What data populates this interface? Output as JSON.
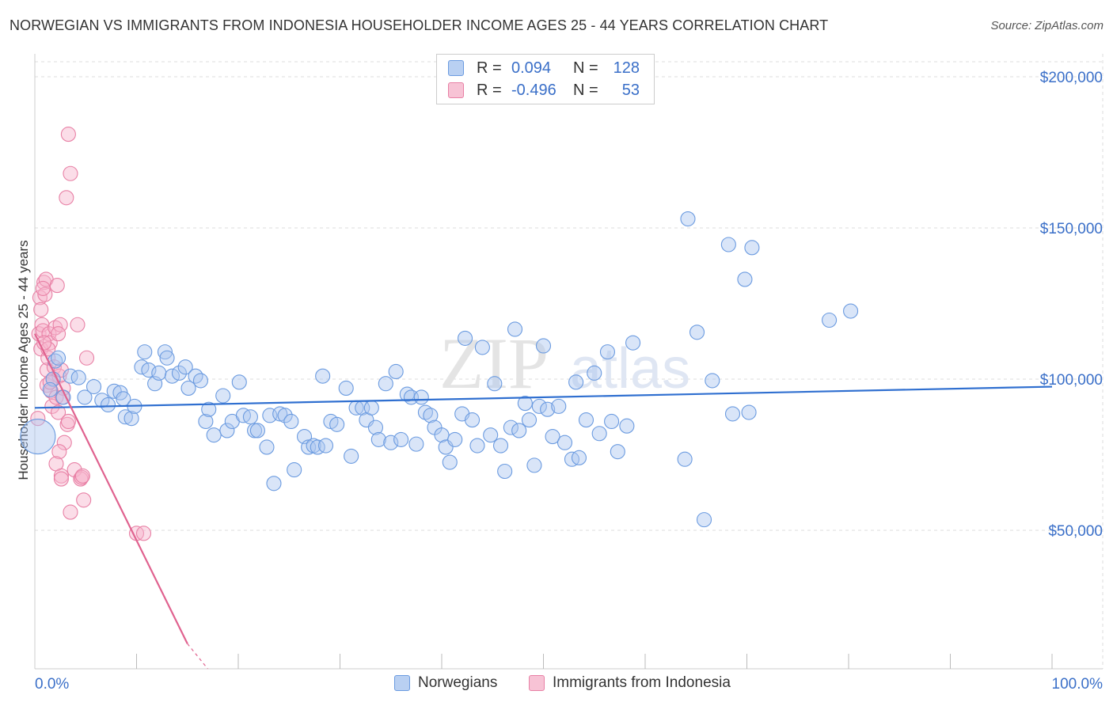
{
  "title": "NORWEGIAN VS IMMIGRANTS FROM INDONESIA HOUSEHOLDER INCOME AGES 25 - 44 YEARS CORRELATION CHART",
  "source": "Source: ZipAtlas.com",
  "watermark": {
    "zip": "ZIP",
    "atlas": "atlas"
  },
  "legend": {
    "r_label": "R =",
    "n_label": "N =",
    "rows": [
      {
        "r": "0.094",
        "n": "128",
        "color": "#6b9be0"
      },
      {
        "r": "-0.496",
        "n": "53",
        "color": "#e880a5"
      }
    ]
  },
  "bottom_legend": [
    "Norwegians",
    "Immigrants from Indonesia"
  ],
  "chart_data": {
    "type": "scatter",
    "title": "NORWEGIAN VS IMMIGRANTS FROM INDONESIA HOUSEHOLDER INCOME AGES 25 - 44 YEARS CORRELATION CHART",
    "xlabel": "",
    "ylabel": "Householder Income Ages 25 - 44 years",
    "xlim": [
      0,
      100
    ],
    "ylim": [
      0,
      210000
    ],
    "x_tick_labels": [
      "0.0%",
      "100.0%"
    ],
    "y_ticks": [
      50000,
      100000,
      150000,
      200000
    ],
    "y_tick_labels": [
      "$50,000",
      "$100,000",
      "$150,000",
      "$200,000"
    ],
    "grid": true,
    "series": [
      {
        "name": "Norwegians",
        "color": "#6b9be0",
        "trend": {
          "x0": 0,
          "y0": 90500,
          "x1": 100,
          "y1": 97500
        },
        "points": [
          [
            0.3,
            81000
          ],
          [
            2,
            106000
          ],
          [
            2.3,
            107000
          ],
          [
            1.8,
            100000
          ],
          [
            1.5,
            96500
          ],
          [
            2.8,
            94000
          ],
          [
            3.5,
            101000
          ],
          [
            4.3,
            100500
          ],
          [
            4.9,
            94000
          ],
          [
            5.8,
            97500
          ],
          [
            6.6,
            93000
          ],
          [
            7.2,
            91500
          ],
          [
            7.8,
            96000
          ],
          [
            8.4,
            95500
          ],
          [
            8.7,
            93500
          ],
          [
            8.9,
            87500
          ],
          [
            9.5,
            87000
          ],
          [
            9.8,
            91000
          ],
          [
            10.5,
            104000
          ],
          [
            10.8,
            109000
          ],
          [
            11.2,
            103000
          ],
          [
            11.8,
            98500
          ],
          [
            12.2,
            102000
          ],
          [
            12.8,
            109000
          ],
          [
            13,
            107000
          ],
          [
            13.5,
            101000
          ],
          [
            14.2,
            102000
          ],
          [
            14.8,
            104000
          ],
          [
            15.1,
            97000
          ],
          [
            15.8,
            101000
          ],
          [
            16.3,
            99500
          ],
          [
            16.8,
            86000
          ],
          [
            17.1,
            90000
          ],
          [
            17.6,
            81500
          ],
          [
            18.5,
            94500
          ],
          [
            18.9,
            83000
          ],
          [
            19.4,
            86000
          ],
          [
            20.1,
            99000
          ],
          [
            20.5,
            88000
          ],
          [
            21.2,
            87500
          ],
          [
            21.6,
            83000
          ],
          [
            21.9,
            83000
          ],
          [
            22.8,
            77500
          ],
          [
            23.1,
            88000
          ],
          [
            23.5,
            65500
          ],
          [
            24.1,
            88500
          ],
          [
            24.6,
            88000
          ],
          [
            25.2,
            86000
          ],
          [
            25.5,
            70000
          ],
          [
            26.5,
            81000
          ],
          [
            26.9,
            77500
          ],
          [
            27.4,
            78000
          ],
          [
            27.8,
            77500
          ],
          [
            28.3,
            101000
          ],
          [
            28.6,
            78000
          ],
          [
            29.1,
            86000
          ],
          [
            29.7,
            85000
          ],
          [
            30.6,
            97000
          ],
          [
            31.1,
            74500
          ],
          [
            31.6,
            90500
          ],
          [
            32.2,
            90500
          ],
          [
            32.6,
            86500
          ],
          [
            33.1,
            90500
          ],
          [
            33.5,
            84000
          ],
          [
            33.8,
            80000
          ],
          [
            34.5,
            98500
          ],
          [
            35,
            79000
          ],
          [
            35.5,
            102500
          ],
          [
            36,
            80000
          ],
          [
            36.6,
            95000
          ],
          [
            37,
            94000
          ],
          [
            37.5,
            78500
          ],
          [
            38,
            94000
          ],
          [
            38.4,
            89000
          ],
          [
            38.9,
            88000
          ],
          [
            39.3,
            84000
          ],
          [
            40,
            81500
          ],
          [
            40.4,
            77500
          ],
          [
            40.8,
            72500
          ],
          [
            41.3,
            80000
          ],
          [
            42,
            88500
          ],
          [
            42.3,
            113500
          ],
          [
            43,
            86500
          ],
          [
            43.5,
            78000
          ],
          [
            44,
            110500
          ],
          [
            44.8,
            81500
          ],
          [
            45.2,
            98500
          ],
          [
            45.8,
            78000
          ],
          [
            46.2,
            69500
          ],
          [
            46.8,
            84000
          ],
          [
            47.2,
            116500
          ],
          [
            47.6,
            83000
          ],
          [
            48.2,
            92000
          ],
          [
            48.6,
            86500
          ],
          [
            49.1,
            71500
          ],
          [
            49.6,
            91000
          ],
          [
            50,
            111000
          ],
          [
            50.4,
            90000
          ],
          [
            50.9,
            81000
          ],
          [
            51.5,
            91000
          ],
          [
            52.1,
            79000
          ],
          [
            52.8,
            73500
          ],
          [
            53.2,
            99000
          ],
          [
            53.5,
            74000
          ],
          [
            54.2,
            86500
          ],
          [
            55,
            102000
          ],
          [
            55.5,
            82000
          ],
          [
            56.3,
            109000
          ],
          [
            56.7,
            86000
          ],
          [
            57.3,
            76000
          ],
          [
            58.2,
            84500
          ],
          [
            58.8,
            112000
          ],
          [
            63.9,
            73500
          ],
          [
            64.2,
            153000
          ],
          [
            65.1,
            115500
          ],
          [
            65.8,
            53500
          ],
          [
            66.6,
            99500
          ],
          [
            68.2,
            144500
          ],
          [
            68.6,
            88500
          ],
          [
            69.8,
            133000
          ],
          [
            70.2,
            89000
          ],
          [
            70.5,
            143500
          ],
          [
            78.1,
            119500
          ],
          [
            80.2,
            122500
          ]
        ]
      },
      {
        "name": "Immigrants from Indonesia",
        "color": "#e880a5",
        "trend": {
          "x0": 0,
          "y0": 115000,
          "x1": 15,
          "y1": 12500,
          "dash_to_x": 17,
          "dash_to_y": -1000
        },
        "points": [
          [
            0.3,
            87000
          ],
          [
            0.4,
            115000
          ],
          [
            0.5,
            127000
          ],
          [
            0.6,
            123000
          ],
          [
            0.6,
            110000
          ],
          [
            0.7,
            118000
          ],
          [
            0.8,
            116000
          ],
          [
            0.9,
            132000
          ],
          [
            1,
            128000
          ],
          [
            1.1,
            133000
          ],
          [
            1.2,
            98000
          ],
          [
            1.2,
            103000
          ],
          [
            1.3,
            107000
          ],
          [
            1.4,
            115000
          ],
          [
            1.5,
            112000
          ],
          [
            1.6,
            96000
          ],
          [
            1.7,
            91000
          ],
          [
            1.8,
            100000
          ],
          [
            1.9,
            104000
          ],
          [
            2,
            117000
          ],
          [
            2.1,
            94000
          ],
          [
            2.2,
            131000
          ],
          [
            2.3,
            89000
          ],
          [
            2.4,
            101000
          ],
          [
            2.5,
            118000
          ],
          [
            2.6,
            103000
          ],
          [
            2.8,
            97000
          ],
          [
            2.9,
            79000
          ],
          [
            3.2,
            85000
          ],
          [
            2.4,
            76000
          ],
          [
            2.1,
            72000
          ],
          [
            2.6,
            68000
          ],
          [
            2.7,
            94000
          ],
          [
            2.3,
            115000
          ],
          [
            1.3,
            110000
          ],
          [
            1.5,
            99000
          ],
          [
            3.1,
            160000
          ],
          [
            2.6,
            67000
          ],
          [
            3.5,
            56000
          ],
          [
            3.9,
            70000
          ],
          [
            3.3,
            86000
          ],
          [
            0.8,
            130000
          ],
          [
            0.9,
            112000
          ],
          [
            4.2,
            118000
          ],
          [
            4.5,
            67000
          ],
          [
            4.6,
            67500
          ],
          [
            4.7,
            68000
          ],
          [
            4.8,
            60000
          ],
          [
            5.1,
            107000
          ],
          [
            3.5,
            168000
          ],
          [
            3.3,
            181000
          ],
          [
            10,
            49000
          ],
          [
            10.7,
            49000
          ]
        ]
      }
    ]
  }
}
